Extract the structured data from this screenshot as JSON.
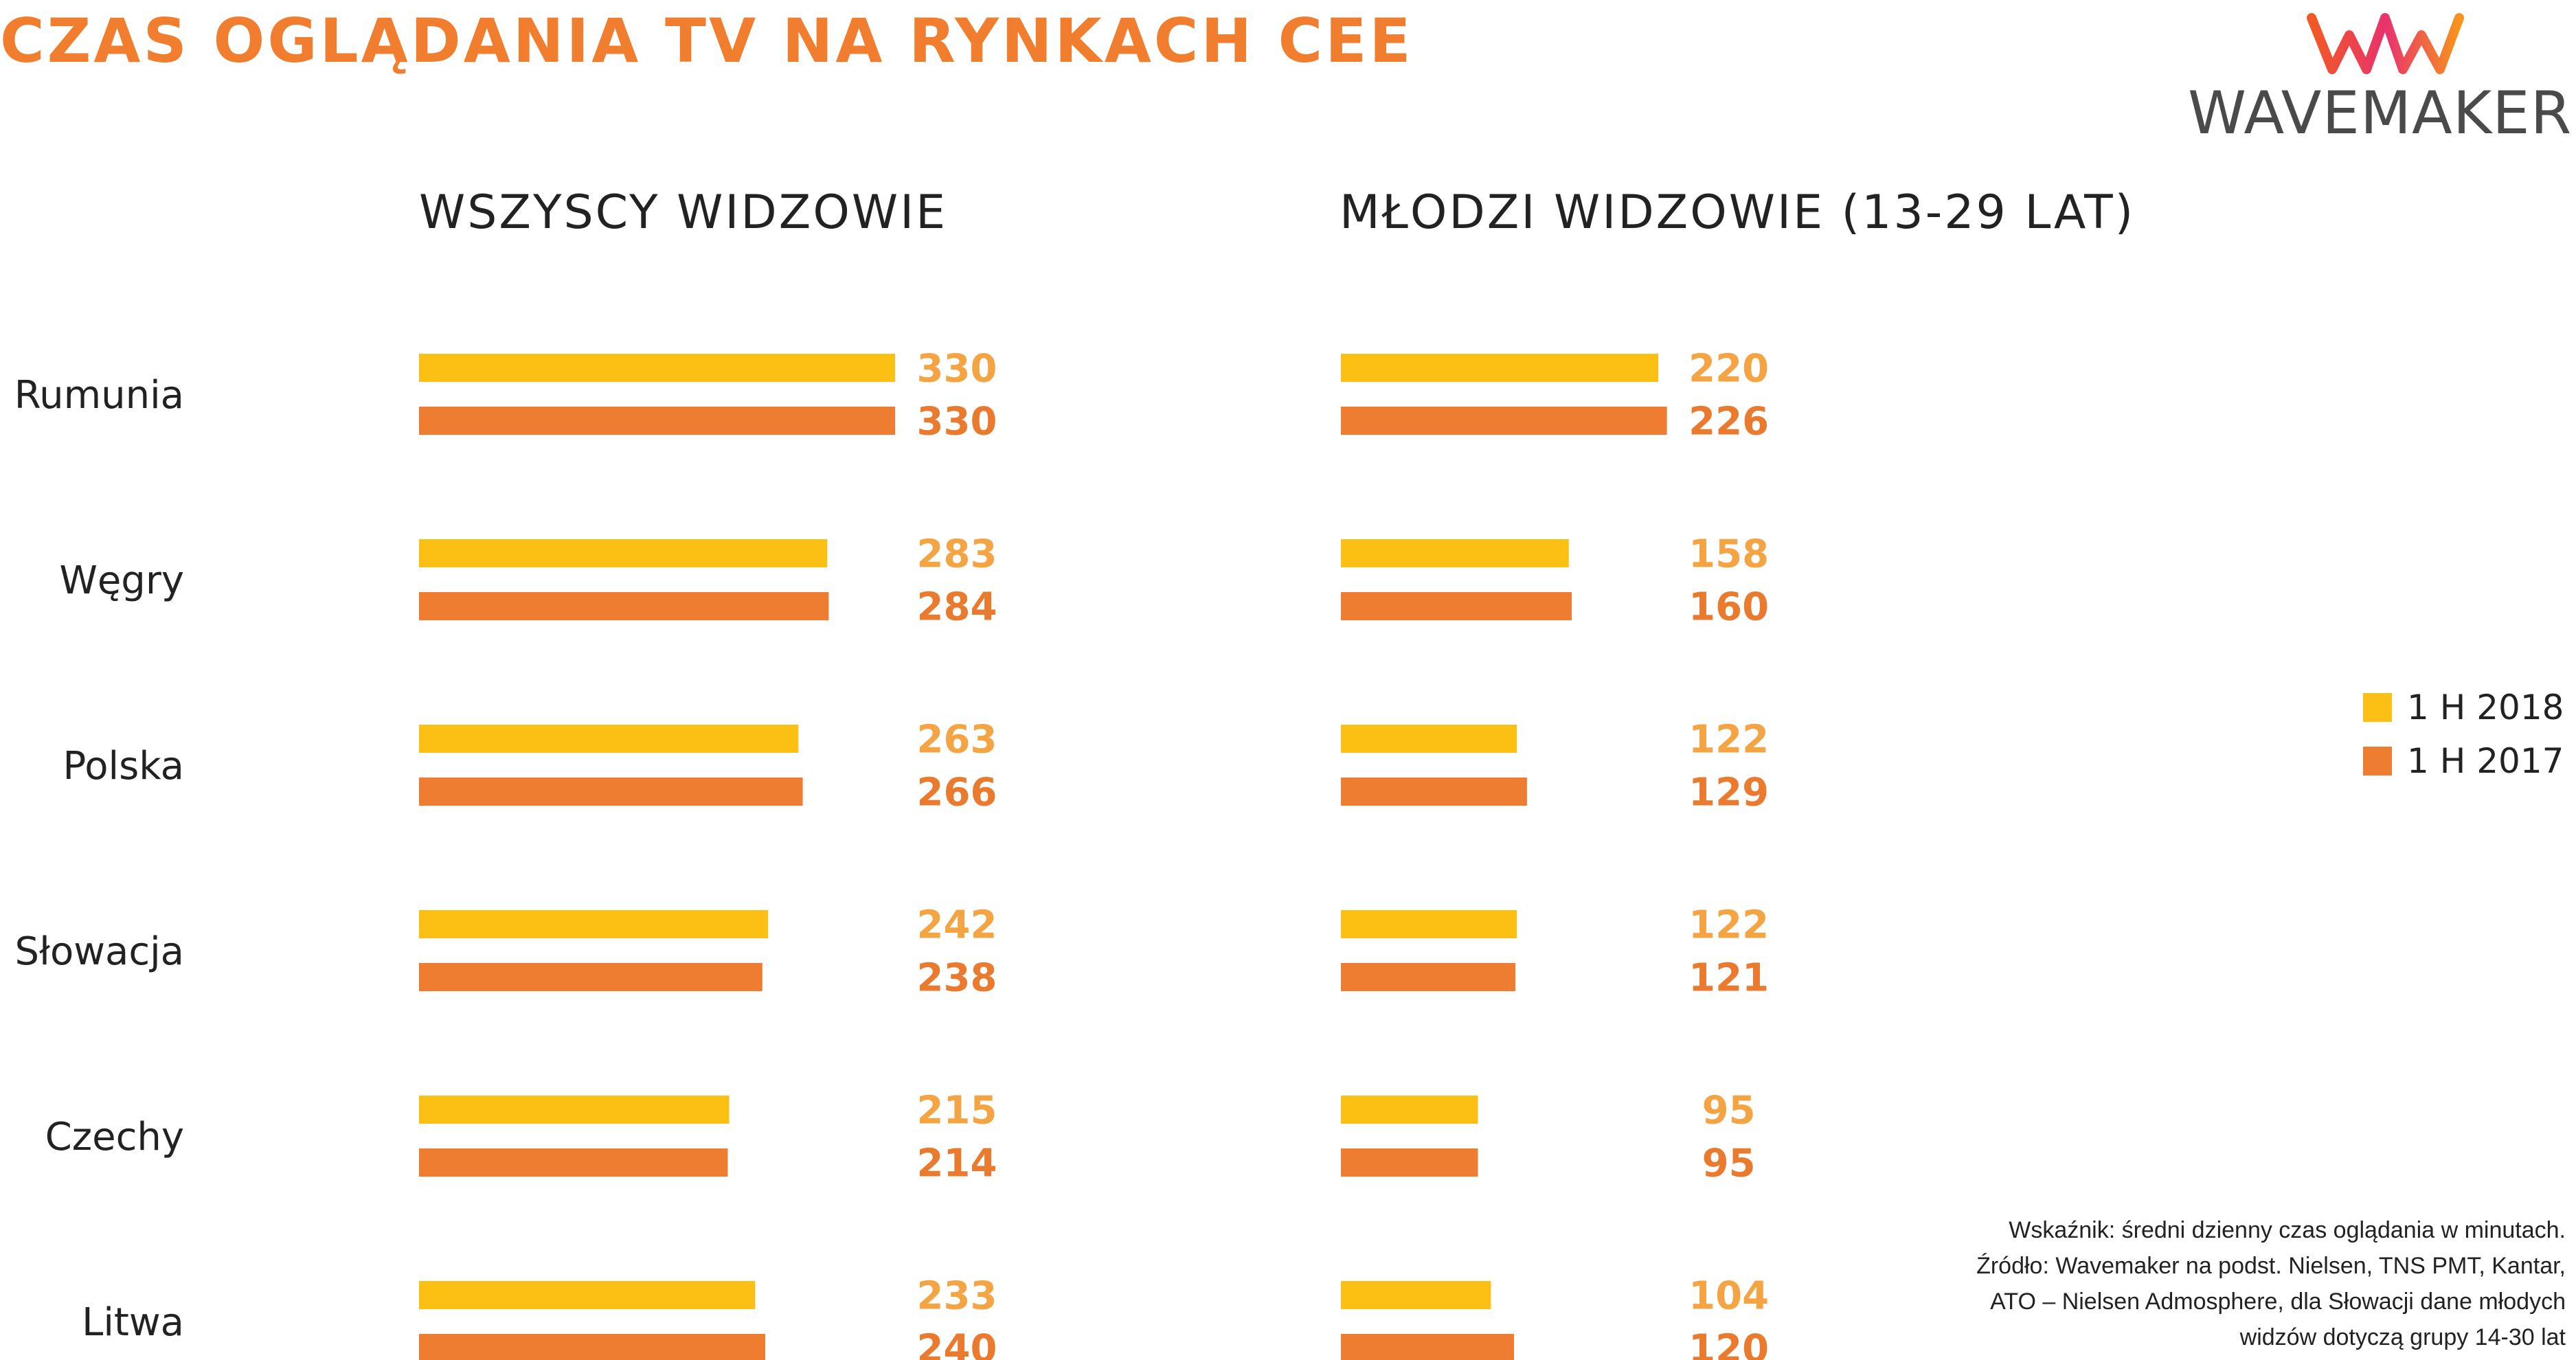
{
  "header": {
    "title": "CZAS OGLĄDANIA TV NA RYNKACH CEE",
    "logo_text": "WAVEMAKER"
  },
  "panels": [
    {
      "title": "WSZYSCY WIDZOWIE"
    },
    {
      "title": "MŁODZI WIDZOWIE (13-29 LAT)"
    }
  ],
  "legend": {
    "items": [
      {
        "label": "1 H 2018",
        "color": "#fcc015"
      },
      {
        "label": "1 H 2017",
        "color": "#ef7d31"
      }
    ]
  },
  "footnote": {
    "lines": [
      "Wskaźnik: średni dzienny czas oglądania w minutach.",
      "Źródło: Wavemaker na podst. Nielsen, TNS PMT, Kantar,",
      "ATO – Nielsen Admosphere, dla Słowacji dane młodych",
      "widzów dotyczą grupy 14-30 lat"
    ]
  },
  "colors": {
    "title": "#f07e2e",
    "series_2018": "#fcc015",
    "series_2017": "#ef7d31",
    "label_2018": "#f4a443",
    "label_2017": "#ea7a2e"
  },
  "chart_data": [
    {
      "type": "bar",
      "orientation": "horizontal",
      "title": "WSZYSCY WIDZOWIE",
      "categories": [
        "Rumunia",
        "Węgry",
        "Polska",
        "Słowacja",
        "Czechy",
        "Litwa"
      ],
      "series": [
        {
          "name": "1 H 2018",
          "values": [
            330,
            283,
            263,
            242,
            215,
            233
          ]
        },
        {
          "name": "1 H 2017",
          "values": [
            330,
            284,
            266,
            238,
            214,
            240
          ]
        }
      ]
    },
    {
      "type": "bar",
      "orientation": "horizontal",
      "title": "MŁODZI WIDZOWIE (13-29 LAT)",
      "categories": [
        "Rumunia",
        "Węgry",
        "Polska",
        "Słowacja",
        "Czechy",
        "Litwa"
      ],
      "series": [
        {
          "name": "1 H 2018",
          "values": [
            220,
            158,
            122,
            122,
            95,
            104
          ]
        },
        {
          "name": "1 H 2017",
          "values": [
            226,
            160,
            129,
            121,
            95,
            120
          ]
        }
      ]
    }
  ]
}
